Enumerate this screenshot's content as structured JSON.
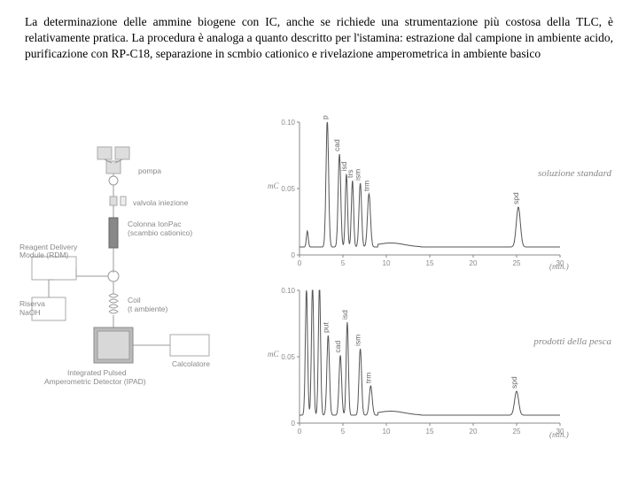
{
  "paragraph": "La determinazione delle ammine biogene con IC, anche se richiede una strumentazione più costosa della TLC, è relativamente pratica. La procedura è analoga a quanto descritto per l'istamina: estrazione dal campione in ambiente acido, purificazione con RP-C18, separazione in scmbio cationico e rivelazione amperometrica in ambiente basico",
  "diagram": {
    "labels": {
      "pompa": "pompa",
      "valvola": "valvola iniezione",
      "colonna": "Colonna IonPac",
      "colonna_sub": "(scambio cationico)",
      "rdm": "Reagent Delivery",
      "rdm2": "Module (RDM)",
      "riserva": "Riserva",
      "riserva2": "NaOH",
      "coil": "Coil",
      "coil_sub": "(t ambiente)",
      "ipad": "Integrated Pulsed",
      "ipad2": "Amperometric Detector (IPAD)",
      "calc": "Calcolatore"
    },
    "colors": {
      "box_stroke": "#aaaaaa",
      "box_fill": "#eeeeee",
      "line": "#999999",
      "dark_fill": "#888888",
      "detector_fill": "#bbbbbb"
    }
  },
  "chart_top": {
    "type": "chromatogram",
    "title": "soluzione standard",
    "ylabel": "mC",
    "xlabel": "(min.)",
    "xlim": [
      0,
      30
    ],
    "xtick_step": 5,
    "ylim": [
      0,
      0.1
    ],
    "ytick_step": 0.05,
    "yticks": [
      "0",
      "0.05",
      "0.10"
    ],
    "xticks": [
      "0",
      "5",
      "10",
      "15",
      "20",
      "25",
      "30"
    ],
    "axis_color": "#888888",
    "line_color": "#555555",
    "peaks": [
      {
        "x": 0.9,
        "h": 0.012,
        "w": 0.25
      },
      {
        "x": 3.2,
        "h": 0.095,
        "w": 0.35,
        "label": "put"
      },
      {
        "x": 4.6,
        "h": 0.07,
        "w": 0.35,
        "label": "cad"
      },
      {
        "x": 5.4,
        "h": 0.055,
        "w": 0.3,
        "label": "isd"
      },
      {
        "x": 6.1,
        "h": 0.05,
        "w": 0.3,
        "label": "trs"
      },
      {
        "x": 7.0,
        "h": 0.048,
        "w": 0.35,
        "label": "ism"
      },
      {
        "x": 8.0,
        "h": 0.04,
        "w": 0.4,
        "label": "trm"
      },
      {
        "x": 25.2,
        "h": 0.03,
        "w": 0.55,
        "label": "spd"
      }
    ],
    "baseline": 0.006
  },
  "chart_bottom": {
    "type": "chromatogram",
    "title": "prodotti della pesca",
    "ylabel": "mC",
    "xlabel": "(min.)",
    "xlim": [
      0,
      30
    ],
    "xtick_step": 5,
    "ylim": [
      0,
      0.1
    ],
    "ytick_step": 0.05,
    "yticks": [
      "0",
      "0.05",
      "0.10"
    ],
    "xticks": [
      "0",
      "5",
      "10",
      "15",
      "20",
      "25",
      "30"
    ],
    "axis_color": "#888888",
    "line_color": "#555555",
    "peaks": [
      {
        "x": 0.8,
        "h": 0.095,
        "w": 0.3
      },
      {
        "x": 1.5,
        "h": 0.098,
        "w": 0.3
      },
      {
        "x": 2.3,
        "h": 0.098,
        "w": 0.3
      },
      {
        "x": 3.3,
        "h": 0.06,
        "w": 0.35,
        "label": "put"
      },
      {
        "x": 4.7,
        "h": 0.045,
        "w": 0.35,
        "label": "cad"
      },
      {
        "x": 5.5,
        "h": 0.07,
        "w": 0.3,
        "label": "isd"
      },
      {
        "x": 7.0,
        "h": 0.05,
        "w": 0.35,
        "label": "ism"
      },
      {
        "x": 8.2,
        "h": 0.022,
        "w": 0.4,
        "label": "trm"
      },
      {
        "x": 25.0,
        "h": 0.018,
        "w": 0.55,
        "label": "spd"
      }
    ],
    "baseline": 0.006
  }
}
